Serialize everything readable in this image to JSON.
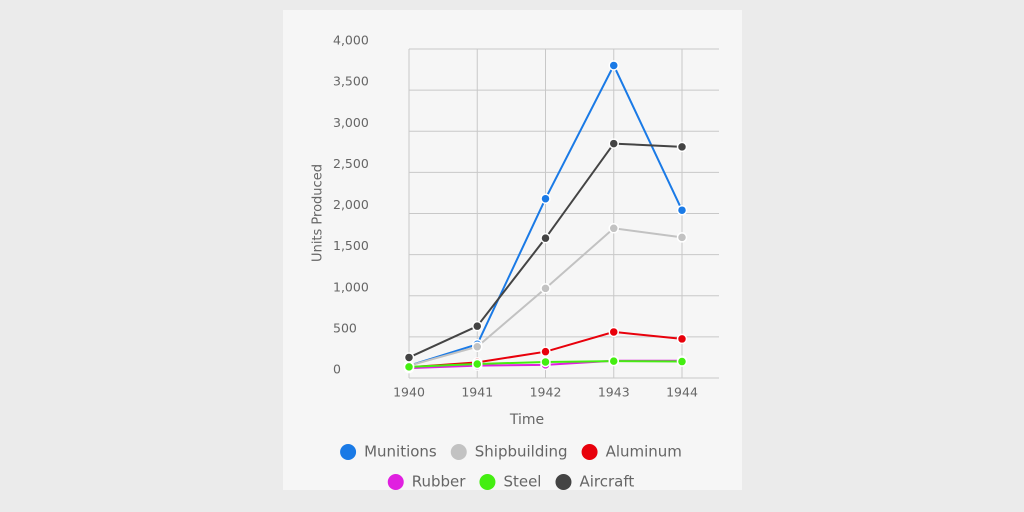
{
  "chart_data": {
    "type": "line",
    "x_label": "Time",
    "y_label": "Units Produced",
    "categories": [
      "1940",
      "1941",
      "1942",
      "1943",
      "1944"
    ],
    "series": [
      {
        "name": "Munitions",
        "color": "#1a7ae6",
        "values": [
          150,
          410,
          2180,
          3800,
          2040
        ]
      },
      {
        "name": "Shipbuilding",
        "color": "#c2c2c2",
        "values": [
          150,
          380,
          1090,
          1820,
          1710
        ]
      },
      {
        "name": "Aluminum",
        "color": "#e8000b",
        "values": [
          130,
          190,
          320,
          560,
          475
        ]
      },
      {
        "name": "Rubber",
        "color": "#e020e0",
        "values": [
          120,
          150,
          160,
          210,
          210
        ]
      },
      {
        "name": "Steel",
        "color": "#44ee11",
        "values": [
          135,
          170,
          195,
          205,
          200
        ]
      },
      {
        "name": "Aircraft",
        "color": "#444444",
        "values": [
          250,
          630,
          1700,
          2850,
          2810
        ]
      }
    ],
    "ylim": [
      0,
      4000
    ],
    "yticks": [
      0,
      500,
      {
        "value": 1000,
        "label": "1,000"
      },
      {
        "value": 1500,
        "label": "1,500"
      },
      {
        "value": 2000,
        "label": "2,000"
      },
      {
        "value": 2500,
        "label": "2,500"
      },
      {
        "value": 3000,
        "label": "3,000"
      },
      {
        "value": 3500,
        "label": "3,500"
      },
      {
        "value": 4000,
        "label": "4,000"
      }
    ],
    "grid": true
  }
}
